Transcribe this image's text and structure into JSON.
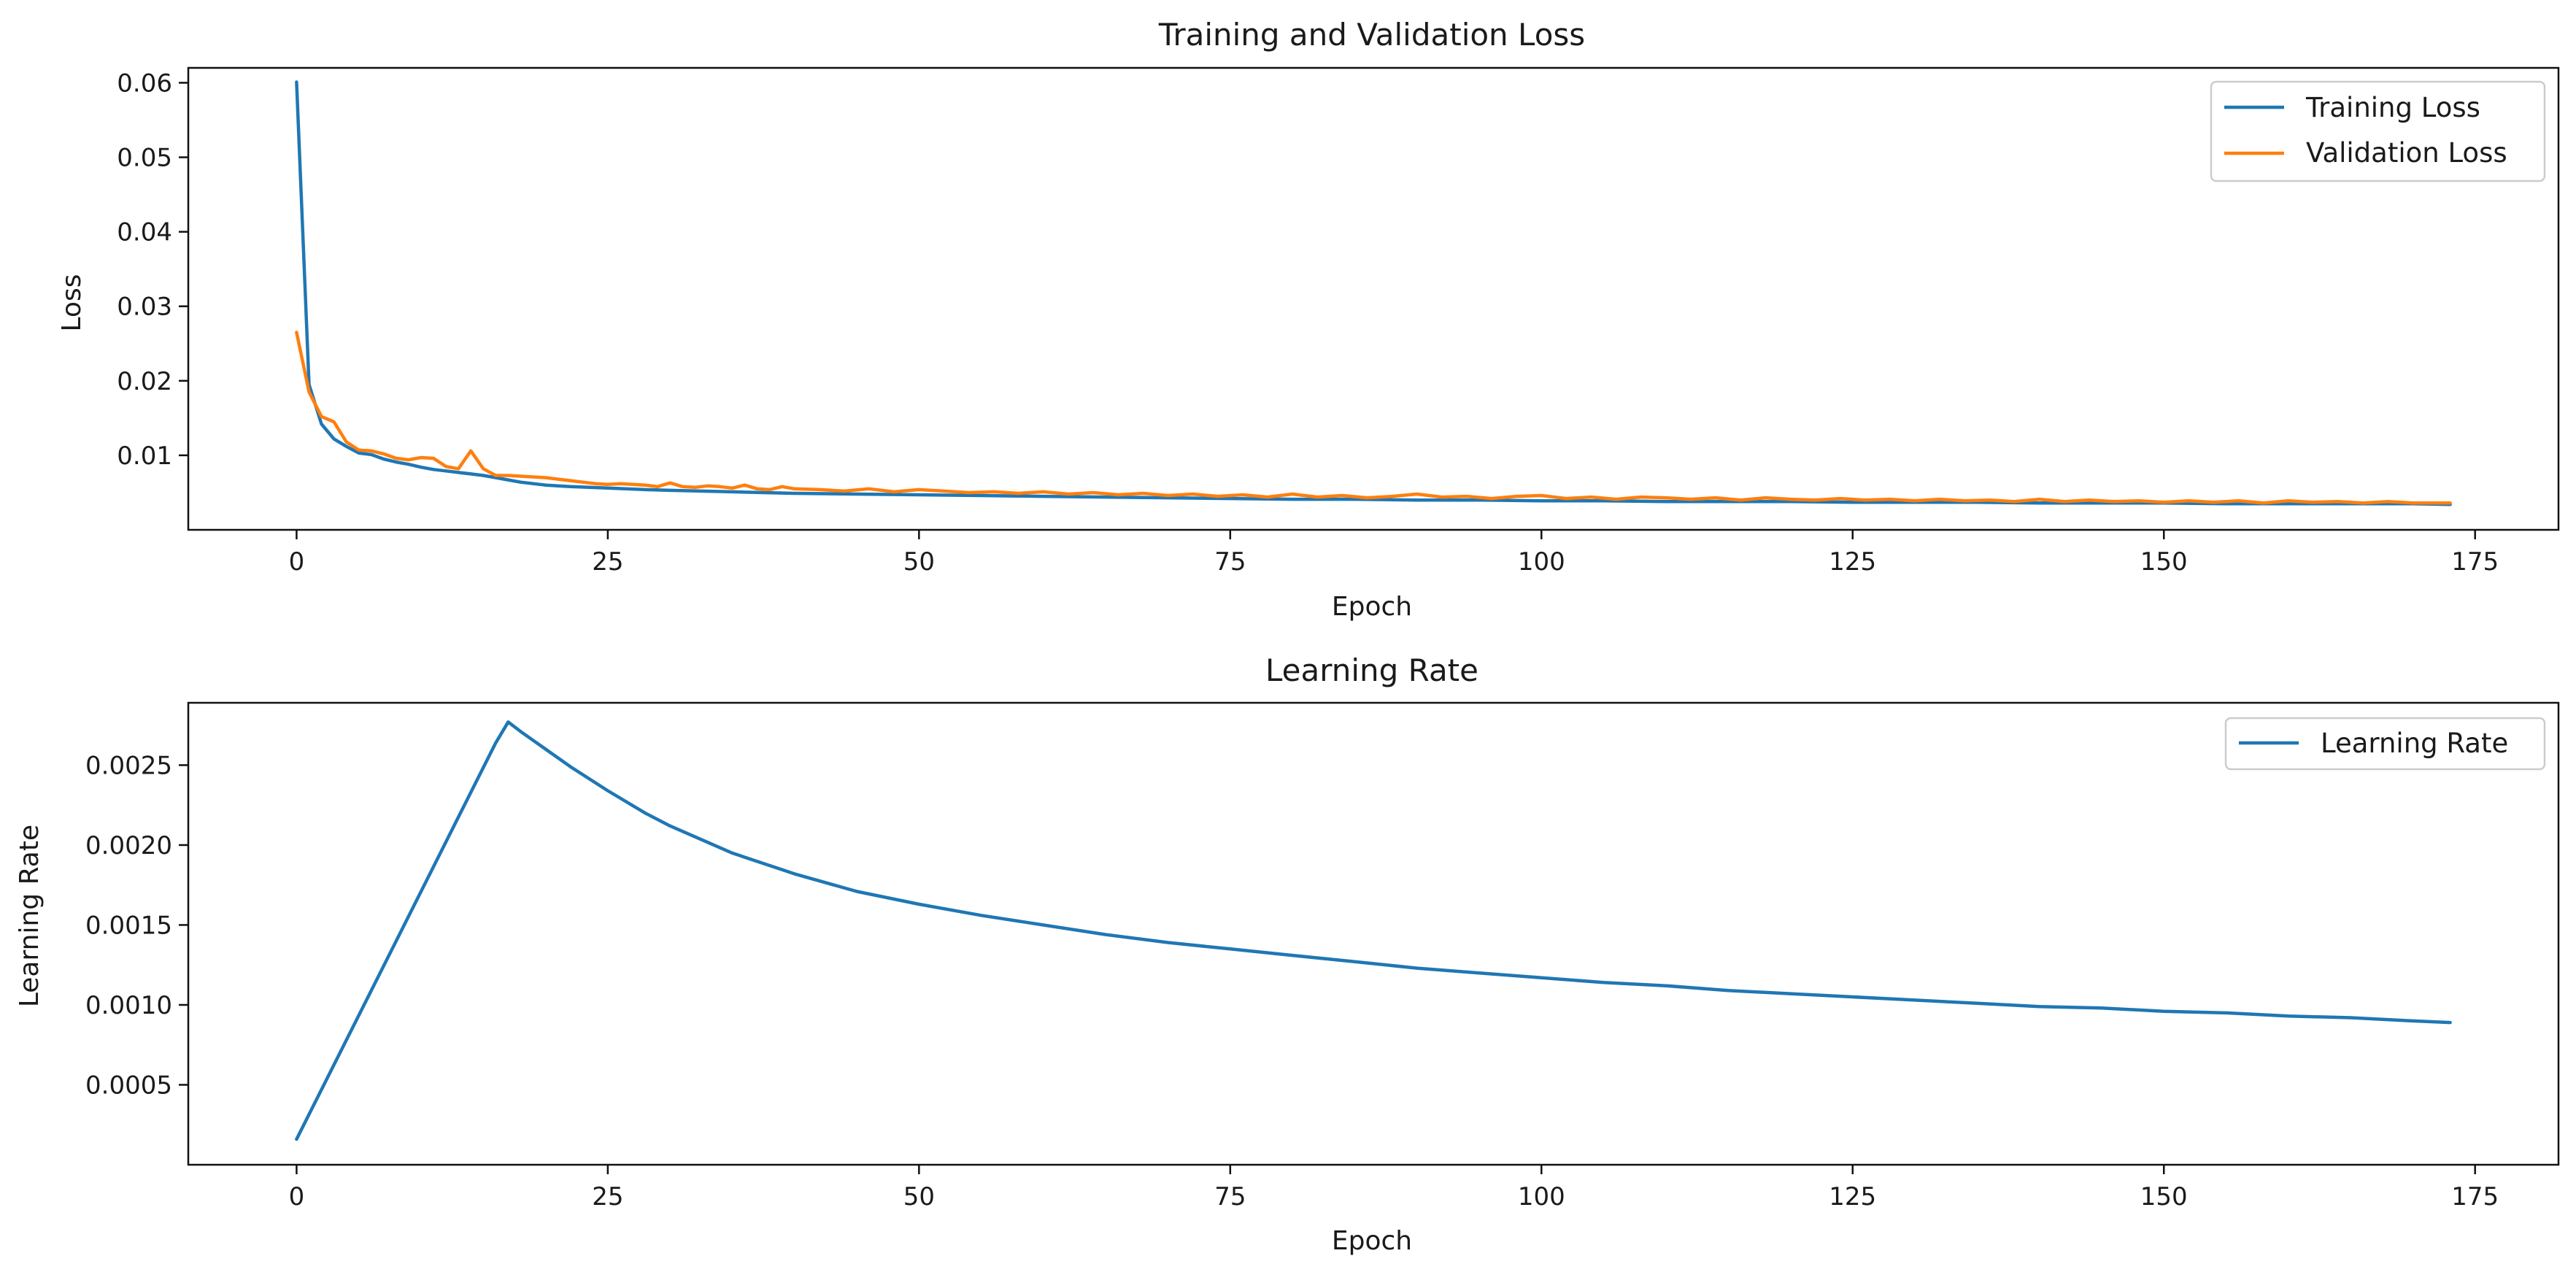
{
  "chart_data": [
    {
      "id": "loss",
      "type": "line",
      "title": "Training and Validation Loss",
      "xlabel": "Epoch",
      "ylabel": "Loss",
      "xlim": [
        -8.7,
        181.7
      ],
      "ylim": [
        0.0,
        0.062
      ],
      "xticks": [
        0,
        25,
        50,
        75,
        100,
        125,
        150,
        175
      ],
      "xtick_labels": [
        "0",
        "25",
        "50",
        "75",
        "100",
        "125",
        "150",
        "175"
      ],
      "yticks": [
        0.01,
        0.02,
        0.03,
        0.04,
        0.05,
        0.06
      ],
      "ytick_labels": [
        "0.01",
        "0.02",
        "0.03",
        "0.04",
        "0.05",
        "0.06"
      ],
      "legend_position": "top-right",
      "series": [
        {
          "name": "Training Loss",
          "color": "#1f77b4",
          "x": [
            0,
            1,
            2,
            3,
            4,
            5,
            6,
            7,
            8,
            9,
            10,
            11,
            12,
            13,
            14,
            15,
            16,
            17,
            18,
            19,
            20,
            22,
            25,
            28,
            30,
            35,
            40,
            45,
            50,
            55,
            60,
            65,
            70,
            75,
            80,
            85,
            90,
            95,
            100,
            105,
            110,
            115,
            120,
            125,
            130,
            135,
            140,
            145,
            150,
            155,
            160,
            165,
            170,
            173
          ],
          "values": [
            0.0601,
            0.0195,
            0.0142,
            0.0122,
            0.0112,
            0.0103,
            0.0101,
            0.0095,
            0.0091,
            0.0088,
            0.0084,
            0.0081,
            0.0079,
            0.0077,
            0.0075,
            0.0073,
            0.007,
            0.0067,
            0.0064,
            0.0062,
            0.006,
            0.0058,
            0.0056,
            0.0054,
            0.0053,
            0.0051,
            0.0049,
            0.0048,
            0.0047,
            0.0046,
            0.0045,
            0.0044,
            0.0043,
            0.0042,
            0.0041,
            0.0041,
            0.004,
            0.004,
            0.0039,
            0.0039,
            0.0038,
            0.0038,
            0.0038,
            0.0037,
            0.0037,
            0.0037,
            0.0036,
            0.0036,
            0.0036,
            0.0035,
            0.0035,
            0.0035,
            0.0035,
            0.0034
          ]
        },
        {
          "name": "Validation Loss",
          "color": "#ff7f0e",
          "x": [
            0,
            1,
            2,
            3,
            4,
            5,
            6,
            7,
            8,
            9,
            10,
            11,
            12,
            13,
            14,
            15,
            16,
            17,
            18,
            19,
            20,
            21,
            22,
            23,
            24,
            25,
            26,
            27,
            28,
            29,
            30,
            31,
            32,
            33,
            34,
            35,
            36,
            37,
            38,
            39,
            40,
            42,
            44,
            46,
            48,
            50,
            52,
            54,
            56,
            58,
            60,
            62,
            64,
            66,
            68,
            70,
            72,
            74,
            76,
            78,
            80,
            82,
            84,
            86,
            88,
            90,
            92,
            94,
            96,
            98,
            100,
            102,
            104,
            106,
            108,
            110,
            112,
            114,
            116,
            118,
            120,
            122,
            124,
            126,
            128,
            130,
            132,
            134,
            136,
            138,
            140,
            142,
            144,
            146,
            148,
            150,
            152,
            154,
            156,
            158,
            160,
            162,
            164,
            166,
            168,
            170,
            173
          ],
          "values": [
            0.0265,
            0.0185,
            0.0152,
            0.0145,
            0.0118,
            0.0107,
            0.0106,
            0.0102,
            0.0096,
            0.0094,
            0.0097,
            0.0096,
            0.0085,
            0.0082,
            0.0106,
            0.0082,
            0.0073,
            0.0073,
            0.0072,
            0.0071,
            0.007,
            0.0068,
            0.0066,
            0.0064,
            0.0062,
            0.0061,
            0.0062,
            0.0061,
            0.006,
            0.0058,
            0.0063,
            0.0058,
            0.0057,
            0.0059,
            0.0058,
            0.0056,
            0.006,
            0.0055,
            0.0054,
            0.0058,
            0.0055,
            0.0054,
            0.0052,
            0.0055,
            0.0051,
            0.0054,
            0.0052,
            0.005,
            0.0051,
            0.0049,
            0.0051,
            0.0048,
            0.005,
            0.0047,
            0.0049,
            0.0046,
            0.0048,
            0.0045,
            0.0047,
            0.0044,
            0.0048,
            0.0044,
            0.0046,
            0.0043,
            0.0045,
            0.0048,
            0.0044,
            0.0045,
            0.0042,
            0.0045,
            0.0046,
            0.0042,
            0.0044,
            0.0041,
            0.0044,
            0.0043,
            0.0041,
            0.0043,
            0.004,
            0.0043,
            0.0041,
            0.004,
            0.0042,
            0.004,
            0.0041,
            0.0039,
            0.0041,
            0.0039,
            0.004,
            0.0038,
            0.0041,
            0.0038,
            0.004,
            0.0038,
            0.0039,
            0.0037,
            0.0039,
            0.0037,
            0.0039,
            0.0036,
            0.0039,
            0.0037,
            0.0038,
            0.0036,
            0.0038,
            0.0036,
            0.0036
          ]
        }
      ]
    },
    {
      "id": "lr",
      "type": "line",
      "title": "Learning Rate",
      "xlabel": "Epoch",
      "ylabel": "Learning Rate",
      "xlim": [
        -8.7,
        181.7
      ],
      "ylim": [
        0.0,
        0.00289
      ],
      "xticks": [
        0,
        25,
        50,
        75,
        100,
        125,
        150,
        175
      ],
      "xtick_labels": [
        "0",
        "25",
        "50",
        "75",
        "100",
        "125",
        "150",
        "175"
      ],
      "yticks": [
        0.0005,
        0.001,
        0.0015,
        0.002,
        0.0025
      ],
      "ytick_labels": [
        "0.0005",
        "0.0010",
        "0.0015",
        "0.0020",
        "0.0025"
      ],
      "legend_position": "top-right",
      "series": [
        {
          "name": "Learning Rate",
          "color": "#1f77b4",
          "x": [
            0,
            2,
            4,
            6,
            8,
            10,
            12,
            14,
            16,
            17,
            18,
            20,
            22,
            25,
            28,
            30,
            35,
            40,
            45,
            50,
            55,
            60,
            65,
            70,
            75,
            80,
            85,
            90,
            95,
            100,
            105,
            110,
            115,
            120,
            125,
            130,
            135,
            140,
            145,
            150,
            155,
            160,
            165,
            170,
            173
          ],
          "values": [
            0.00016,
            0.00047,
            0.00078,
            0.00109,
            0.0014,
            0.00171,
            0.00202,
            0.00233,
            0.00264,
            0.00277,
            0.00271,
            0.0026,
            0.00249,
            0.00234,
            0.0022,
            0.00212,
            0.00195,
            0.00182,
            0.00171,
            0.00163,
            0.00156,
            0.0015,
            0.00144,
            0.00139,
            0.00135,
            0.00131,
            0.00127,
            0.00123,
            0.0012,
            0.00117,
            0.00114,
            0.00112,
            0.00109,
            0.00107,
            0.00105,
            0.00103,
            0.00101,
            0.00099,
            0.00098,
            0.00096,
            0.00095,
            0.00093,
            0.00092,
            0.0009,
            0.00089
          ]
        }
      ]
    }
  ]
}
